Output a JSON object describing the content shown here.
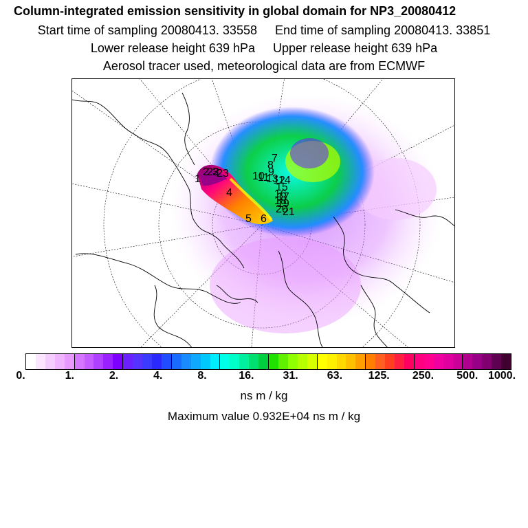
{
  "header": {
    "title": "Column-integrated emission sensitivity in global domain for NP3_20080412",
    "start_sampling": "Start time of sampling 20080413. 33558",
    "end_sampling": "End time of sampling 20080413. 33851",
    "lower_release": "Lower release height  639 hPa",
    "upper_release": "Upper release height  639 hPa",
    "tracer_note": "Aerosol tracer used, meteorological data are from ECMWF"
  },
  "map": {
    "projection": "north polar stereographic",
    "track_labels": [
      "1",
      "2",
      "3",
      "4",
      "5",
      "6",
      "7",
      "8",
      "9",
      "10",
      "11",
      "12",
      "13",
      "14",
      "15",
      "16",
      "17",
      "18",
      "19",
      "20",
      "21",
      "22",
      "23"
    ]
  },
  "colorbar": {
    "colors": [
      "#ffffff",
      "#fbe6ff",
      "#f5ccff",
      "#efb3ff",
      "#e899ff",
      "#d675ff",
      "#c45cff",
      "#b040ff",
      "#9a20ff",
      "#7d00ff",
      "#6a20ff",
      "#5533ff",
      "#3b3bff",
      "#2a2aff",
      "#1f4dff",
      "#1a6bff",
      "#1a8aff",
      "#10a8ff",
      "#00c8ff",
      "#00ecff",
      "#00ffe8",
      "#00ffc8",
      "#00f0a0",
      "#00e070",
      "#00d040",
      "#20e000",
      "#60f000",
      "#90ff00",
      "#b8ff00",
      "#d8ff00",
      "#ffff00",
      "#fff000",
      "#ffd800",
      "#ffc000",
      "#ffa000",
      "#ff8000",
      "#ff6020",
      "#ff4020",
      "#ff2040",
      "#ff0060",
      "#ff0080",
      "#ff0090",
      "#f000a0",
      "#e000a0",
      "#cc0099",
      "#b00090",
      "#990088",
      "#800070",
      "#600050",
      "#400030"
    ],
    "tick_labels": [
      "0.",
      "1.",
      "2.",
      "4.",
      "8.",
      "16.",
      "31.",
      "63.",
      "125.",
      "250.",
      "500.",
      "1000."
    ],
    "unit": "ns m / kg"
  },
  "footer": {
    "maximum_value": "Maximum value  0.932E+04 ns m / kg"
  }
}
